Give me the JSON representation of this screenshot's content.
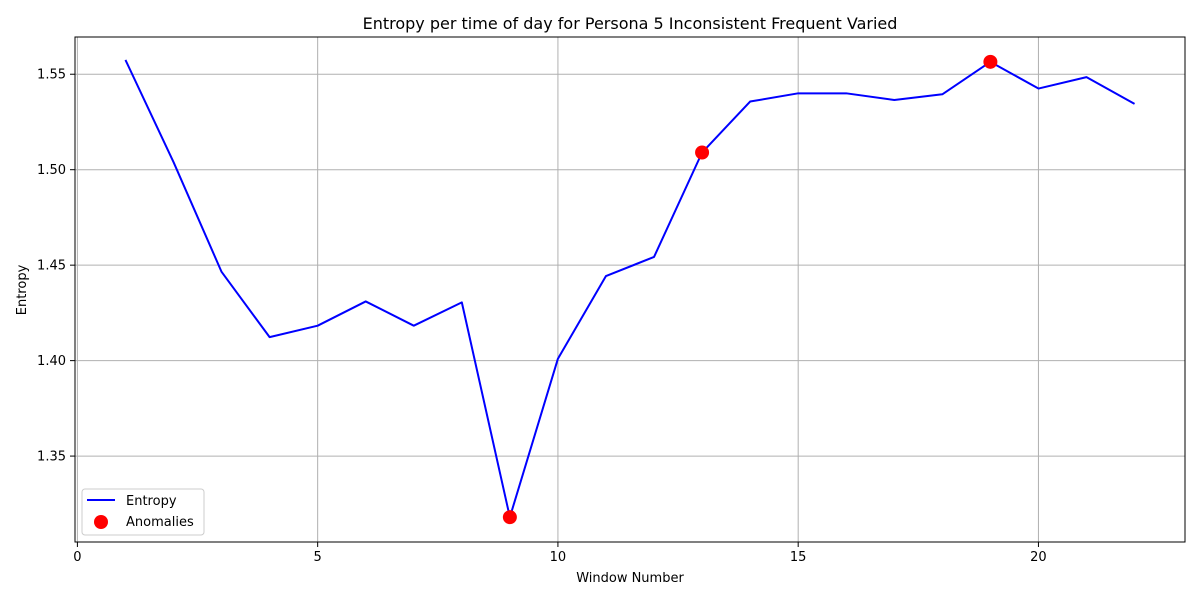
{
  "chart_data": {
    "type": "line",
    "title": "Entropy per time of day for Persona 5 Inconsistent Frequent Varied",
    "xlabel": "Window Number",
    "ylabel": "Entropy",
    "xlim": [
      -0.05,
      23.05
    ],
    "ylim": [
      1.305,
      1.5695
    ],
    "xticks": [
      0,
      5,
      10,
      15,
      20
    ],
    "yticks": [
      1.35,
      1.4,
      1.45,
      1.5,
      1.55
    ],
    "grid": true,
    "legend_position": "lower-left",
    "series": [
      {
        "name": "Entropy",
        "color": "#0000ff",
        "x": [
          1,
          2,
          3,
          4,
          5,
          6,
          7,
          8,
          9,
          10,
          11,
          12,
          13,
          14,
          15,
          16,
          17,
          18,
          19,
          20,
          21,
          22
        ],
        "y": [
          1.5575,
          1.504,
          1.4465,
          1.4123,
          1.4183,
          1.431,
          1.4183,
          1.4305,
          1.318,
          1.401,
          1.4443,
          1.4543,
          1.509,
          1.5357,
          1.54,
          1.54,
          1.5365,
          1.5395,
          1.5565,
          1.5425,
          1.5485,
          1.5345
        ]
      }
    ],
    "anomalies": {
      "name": "Anomalies",
      "color": "#ff0000",
      "x": [
        9,
        13,
        19
      ],
      "y": [
        1.318,
        1.509,
        1.5565
      ]
    }
  }
}
